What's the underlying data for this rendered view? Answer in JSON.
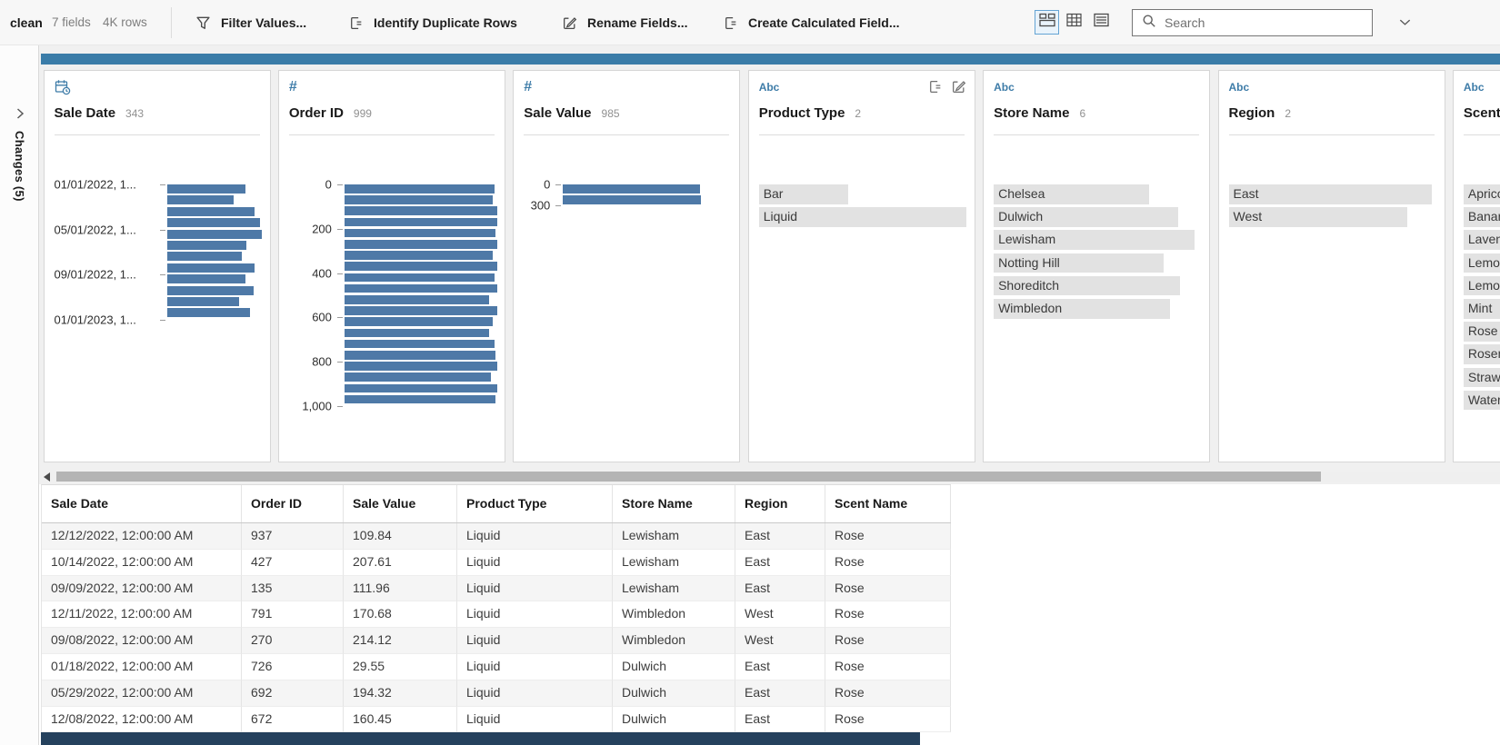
{
  "toolbar": {
    "flow_name": "clean",
    "field_summary": "7 fields",
    "row_summary": "4K rows",
    "buttons": [
      {
        "name": "filter-values",
        "icon": "filter-icon",
        "label": "Filter Values..."
      },
      {
        "name": "identify-duplicate-rows",
        "icon": "duplicate-rows-icon",
        "label": "Identify Duplicate Rows"
      },
      {
        "name": "rename-fields",
        "icon": "rename-icon",
        "label": "Rename Fields..."
      },
      {
        "name": "create-calculated-field",
        "icon": "calculated-field-icon",
        "label": "Create Calculated Field..."
      }
    ],
    "view_toggles": [
      {
        "name": "profile-view-toggle",
        "icon": "profile-view-icon",
        "selected": true
      },
      {
        "name": "grid-view-toggle",
        "icon": "grid-view-icon",
        "selected": false
      },
      {
        "name": "list-view-toggle",
        "icon": "list-view-icon",
        "selected": false
      }
    ],
    "search_placeholder": "Search"
  },
  "left_panel": {
    "collapse_label": "Changes (5)"
  },
  "profile_cards": [
    {
      "field": "Sale Date",
      "count": "343",
      "type": "date",
      "histogram": {
        "bars": [
          83,
          71,
          93,
          99,
          100,
          84,
          79,
          93,
          83,
          92,
          76,
          88
        ],
        "ticks": [
          {
            "label": "01/01/2022, 1...",
            "index": 0
          },
          {
            "label": "05/01/2022, 1...",
            "index": 4
          },
          {
            "label": "09/01/2022, 1...",
            "index": 8
          },
          {
            "label": "01/01/2023, 1...",
            "index": 12
          }
        ]
      }
    },
    {
      "field": "Order ID",
      "count": "999",
      "type": "number",
      "histogram": {
        "bars": [
          98,
          97,
          100,
          100,
          99,
          100,
          97,
          100,
          98,
          100,
          95,
          100,
          97,
          95,
          98,
          99,
          100,
          96,
          100,
          99
        ],
        "ticks": [
          {
            "label": "0",
            "index": 0
          },
          {
            "label": "200",
            "index": 4
          },
          {
            "label": "400",
            "index": 8
          },
          {
            "label": "600",
            "index": 12
          },
          {
            "label": "800",
            "index": 16
          },
          {
            "label": "1,000",
            "index": 20
          }
        ]
      }
    },
    {
      "field": "Sale Value",
      "count": "985",
      "type": "number",
      "histogram": {
        "bars": [
          99,
          100
        ],
        "ticks": [
          {
            "label": "0",
            "index": 0
          },
          {
            "label": "300",
            "index": 2
          }
        ]
      }
    },
    {
      "field": "Product Type",
      "count": "2",
      "type": "string",
      "header_icons": true,
      "values": [
        {
          "label": "Bar",
          "pct": 43
        },
        {
          "label": "Liquid",
          "pct": 100
        }
      ]
    },
    {
      "field": "Store Name",
      "count": "6",
      "type": "string",
      "values": [
        {
          "label": "Chelsea",
          "pct": 75
        },
        {
          "label": "Dulwich",
          "pct": 89
        },
        {
          "label": "Lewisham",
          "pct": 97
        },
        {
          "label": "Notting Hill",
          "pct": 82
        },
        {
          "label": "Shoreditch",
          "pct": 90
        },
        {
          "label": "Wimbledon",
          "pct": 85
        }
      ]
    },
    {
      "field": "Region",
      "count": "2",
      "type": "string",
      "values": [
        {
          "label": "East",
          "pct": 98
        },
        {
          "label": "West",
          "pct": 86
        }
      ]
    },
    {
      "field": "Scent Name",
      "count": "",
      "type": "string",
      "values": [
        {
          "label": "Apricot",
          "pct": 100
        },
        {
          "label": "Banana",
          "pct": 100
        },
        {
          "label": "Lavender",
          "pct": 100
        },
        {
          "label": "Lemon",
          "pct": 100
        },
        {
          "label": "Lemon",
          "pct": 100
        },
        {
          "label": "Mint",
          "pct": 100
        },
        {
          "label": "Rose",
          "pct": 100
        },
        {
          "label": "Rosemary",
          "pct": 100
        },
        {
          "label": "Strawberry",
          "pct": 100
        },
        {
          "label": "Watermelon",
          "pct": 100
        }
      ]
    }
  ],
  "data_grid": {
    "columns": [
      "Sale Date",
      "Order ID",
      "Sale Value",
      "Product Type",
      "Store Name",
      "Region",
      "Scent Name"
    ],
    "rows": [
      [
        "12/12/2022, 12:00:00 AM",
        "937",
        "109.84",
        "Liquid",
        "Lewisham",
        "East",
        "Rose"
      ],
      [
        "10/14/2022, 12:00:00 AM",
        "427",
        "207.61",
        "Liquid",
        "Lewisham",
        "East",
        "Rose"
      ],
      [
        "09/09/2022, 12:00:00 AM",
        "135",
        "111.96",
        "Liquid",
        "Lewisham",
        "East",
        "Rose"
      ],
      [
        "12/11/2022, 12:00:00 AM",
        "791",
        "170.68",
        "Liquid",
        "Wimbledon",
        "West",
        "Rose"
      ],
      [
        "09/08/2022, 12:00:00 AM",
        "270",
        "214.12",
        "Liquid",
        "Wimbledon",
        "West",
        "Rose"
      ],
      [
        "01/18/2022, 12:00:00 AM",
        "726",
        "29.55",
        "Liquid",
        "Dulwich",
        "East",
        "Rose"
      ],
      [
        "05/29/2022, 12:00:00 AM",
        "692",
        "194.32",
        "Liquid",
        "Dulwich",
        "East",
        "Rose"
      ],
      [
        "12/08/2022, 12:00:00 AM",
        "672",
        "160.45",
        "Liquid",
        "Dulwich",
        "East",
        "Rose"
      ]
    ]
  },
  "colors": {
    "accent_bar": "#3a7ca8",
    "histogram_bar": "#4e79a7",
    "value_bar": "#e2e2e2",
    "type_icon_blue": "#3e7ca8",
    "selected_strip": "#25415d"
  }
}
